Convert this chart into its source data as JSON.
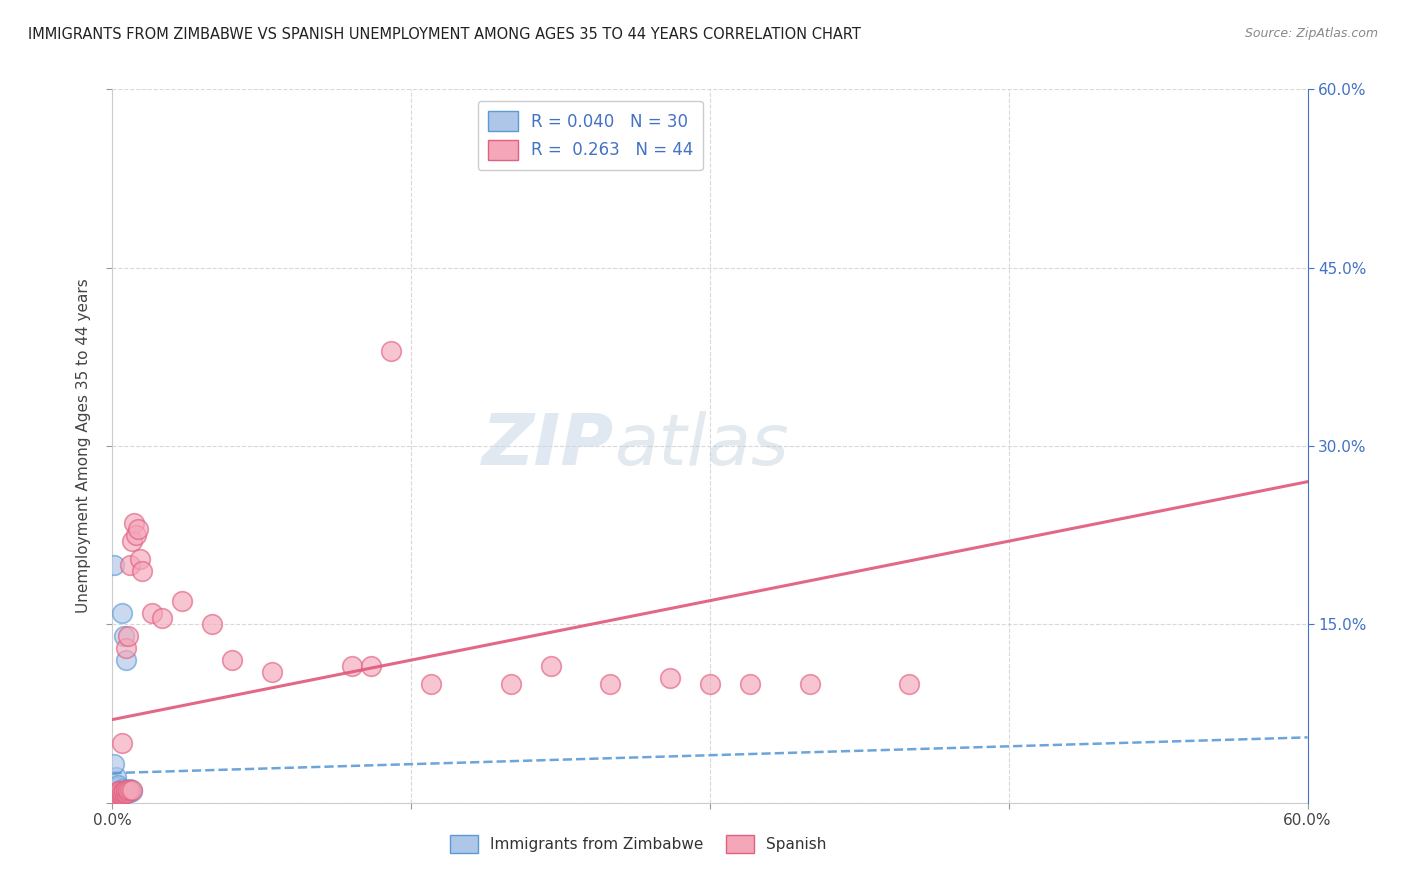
{
  "title": "IMMIGRANTS FROM ZIMBABWE VS SPANISH UNEMPLOYMENT AMONG AGES 35 TO 44 YEARS CORRELATION CHART",
  "source": "Source: ZipAtlas.com",
  "ylabel": "Unemployment Among Ages 35 to 44 years",
  "right_yticks": [
    "60.0%",
    "45.0%",
    "30.0%",
    "15.0%"
  ],
  "right_ytick_vals": [
    0.6,
    0.45,
    0.3,
    0.15
  ],
  "xlim": [
    0.0,
    0.6
  ],
  "ylim": [
    0.0,
    0.6
  ],
  "watermark_zip": "ZIP",
  "watermark_atlas": "atlas",
  "blue_color": "#aec6e8",
  "blue_edge_color": "#5b9bd5",
  "pink_color": "#f4a7b9",
  "pink_edge_color": "#e06080",
  "blue_line_color": "#5b9bd5",
  "pink_line_color": "#e05878",
  "grid_color": "#d0d0d0",
  "right_tick_color": "#4472c4",
  "title_color": "#222222",
  "source_color": "#888888",
  "ylabel_color": "#444444",
  "blue_scatter_x": [
    0.001,
    0.002,
    0.002,
    0.002,
    0.002,
    0.003,
    0.003,
    0.003,
    0.003,
    0.003,
    0.004,
    0.004,
    0.004,
    0.005,
    0.005,
    0.005,
    0.005,
    0.006,
    0.006,
    0.006,
    0.007,
    0.007,
    0.007,
    0.008,
    0.008,
    0.009,
    0.009,
    0.01,
    0.001,
    0.001
  ],
  "blue_scatter_y": [
    0.005,
    0.006,
    0.007,
    0.01,
    0.022,
    0.007,
    0.008,
    0.009,
    0.013,
    0.015,
    0.006,
    0.008,
    0.01,
    0.007,
    0.009,
    0.012,
    0.16,
    0.008,
    0.01,
    0.14,
    0.008,
    0.01,
    0.12,
    0.009,
    0.011,
    0.009,
    0.012,
    0.01,
    0.033,
    0.2
  ],
  "pink_scatter_x": [
    0.001,
    0.002,
    0.003,
    0.003,
    0.004,
    0.004,
    0.005,
    0.005,
    0.005,
    0.006,
    0.006,
    0.007,
    0.007,
    0.007,
    0.008,
    0.008,
    0.008,
    0.009,
    0.009,
    0.01,
    0.01,
    0.011,
    0.012,
    0.013,
    0.014,
    0.015,
    0.02,
    0.025,
    0.035,
    0.05,
    0.06,
    0.08,
    0.12,
    0.13,
    0.14,
    0.16,
    0.2,
    0.22,
    0.25,
    0.28,
    0.3,
    0.32,
    0.35,
    0.4
  ],
  "pink_scatter_y": [
    0.007,
    0.007,
    0.008,
    0.01,
    0.007,
    0.01,
    0.007,
    0.009,
    0.05,
    0.008,
    0.01,
    0.008,
    0.011,
    0.13,
    0.009,
    0.011,
    0.14,
    0.011,
    0.2,
    0.011,
    0.22,
    0.235,
    0.225,
    0.23,
    0.205,
    0.195,
    0.16,
    0.155,
    0.17,
    0.15,
    0.12,
    0.11,
    0.115,
    0.115,
    0.38,
    0.1,
    0.1,
    0.115,
    0.1,
    0.105,
    0.1,
    0.1,
    0.1,
    0.1
  ],
  "blue_trend_x": [
    0.0,
    0.6
  ],
  "blue_trend_y": [
    0.025,
    0.055
  ],
  "pink_trend_x": [
    0.0,
    0.6
  ],
  "pink_trend_y": [
    0.07,
    0.27
  ]
}
